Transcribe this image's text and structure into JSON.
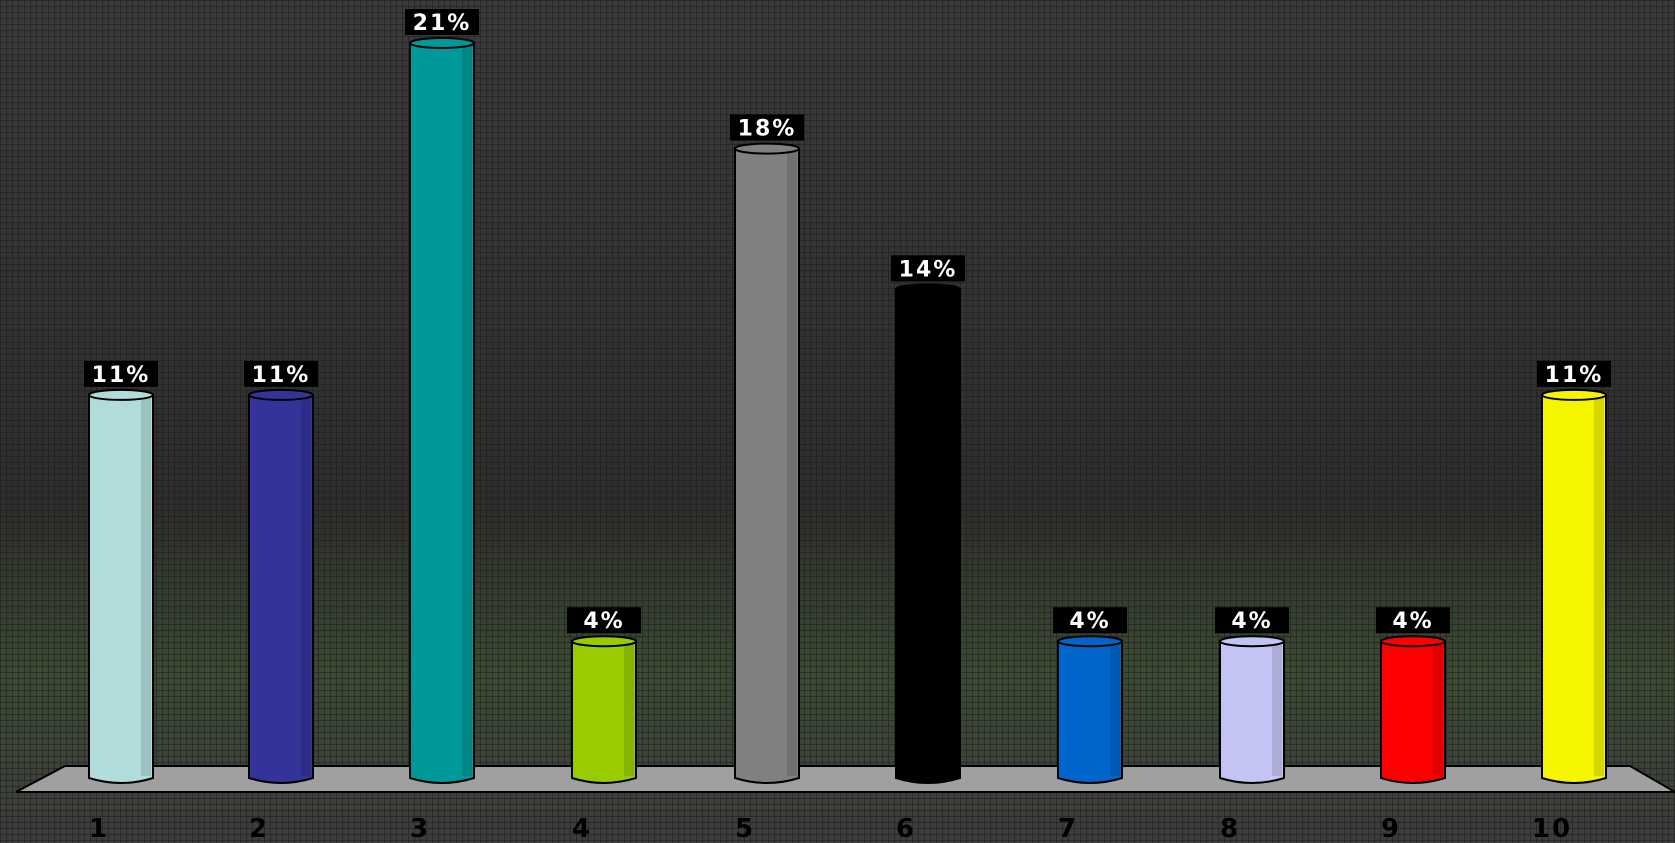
{
  "chart_data": {
    "type": "bar",
    "categories": [
      "1",
      "2",
      "3",
      "4",
      "5",
      "6",
      "7",
      "8",
      "9",
      "10"
    ],
    "values": [
      11,
      11,
      21,
      4,
      18,
      14,
      4,
      4,
      4,
      11
    ],
    "value_labels": [
      "11%",
      "11%",
      "21%",
      "4%",
      "18%",
      "14%",
      "4%",
      "4%",
      "4%",
      "11%"
    ],
    "colors": [
      "#b2dcdc",
      "#333399",
      "#009999",
      "#99cc00",
      "#808080",
      "#000000",
      "#0066cc",
      "#c4c4f4",
      "#ff0000",
      "#f5f500"
    ]
  }
}
